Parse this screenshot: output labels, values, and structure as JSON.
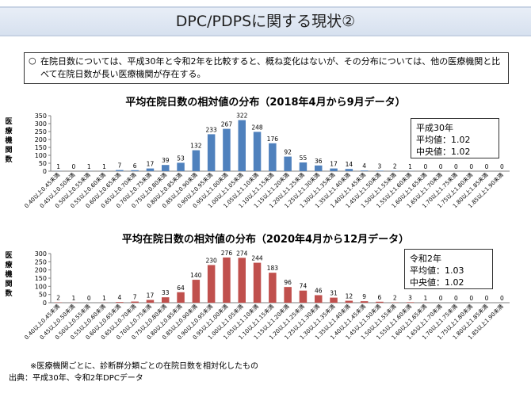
{
  "slide_title": "DPC/PDPSに関する現状②",
  "summary": {
    "bullet": "○",
    "text": "在院日数については、平成30年と令和2年を比較すると、概ね変化はないが、その分布については、他の医療機関と比べて在院日数が長い医療機関が存在する。"
  },
  "chart_data": [
    {
      "type": "bar",
      "title": "平均在院日数の相対値の分布（2018年4月から9月データ）",
      "ylabel": "医療機関数",
      "ylim": [
        0,
        350
      ],
      "yticks": [
        0,
        50,
        100,
        150,
        200,
        250,
        300,
        350
      ],
      "grid": false,
      "bar_color": "#4f81bd",
      "categories": [
        "0.40以上0.45未満",
        "0.45以上0.50未満",
        "0.50以上0.55未満",
        "0.55以上0.60未満",
        "0.60以上0.65未満",
        "0.65以上0.70未満",
        "0.70以上0.75未満",
        "0.75以上0.80未満",
        "0.80以上0.85未満",
        "0.85以上0.90未満",
        "0.90以上0.95未満",
        "0.95以上1.00未満",
        "1.00以上1.05未満",
        "1.05以上1.10未満",
        "1.10以上1.15未満",
        "1.15以上1.20未満",
        "1.20以上1.25未満",
        "1.25以上1.30未満",
        "1.30以上1.35未満",
        "1.35以上1.40未満",
        "1.40以上1.45未満",
        "1.45以上1.50未満",
        "1.50以上1.55未満",
        "1.55以上1.60未満",
        "1.60以上1.65未満",
        "1.65以上1.70未満",
        "1.70以上1.75未満",
        "1.75以上1.80未満",
        "1.80以上1.85未満",
        "1.85以上1.90未満"
      ],
      "values": [
        1,
        0,
        1,
        1,
        7,
        6,
        17,
        39,
        53,
        132,
        233,
        267,
        322,
        248,
        176,
        92,
        55,
        36,
        17,
        14,
        4,
        3,
        2,
        1,
        0,
        0,
        0,
        0,
        0,
        0
      ],
      "stats": {
        "label": "平成30年",
        "mean": "平均値：1.02",
        "median": "中央値：1.02"
      }
    },
    {
      "type": "bar",
      "title": "平均在院日数の相対値の分布（2020年4月から12月データ）",
      "ylabel": "医療機関数",
      "ylim": [
        0,
        300
      ],
      "yticks": [
        0,
        50,
        100,
        150,
        200,
        250,
        300
      ],
      "grid": false,
      "bar_color": "#c0504d",
      "categories": [
        "0.40以上0.45未満",
        "0.45以上0.50未満",
        "0.50以上0.55未満",
        "0.55以上0.60未満",
        "0.60以上0.65未満",
        "0.65以上0.70未満",
        "0.70以上0.75未満",
        "0.75以上0.80未満",
        "0.80以上0.85未満",
        "0.85以上0.90未満",
        "0.90以上0.95未満",
        "0.95以上1.00未満",
        "1.00以上1.05未満",
        "1.05以上1.10未満",
        "1.10以上1.15未満",
        "1.15以上1.20未満",
        "1.20以上1.25未満",
        "1.25以上1.30未満",
        "1.30以上1.35未満",
        "1.35以上1.40未満",
        "1.40以上1.45未満",
        "1.45以上1.50未満",
        "1.50以上1.55未満",
        "1.55以上1.60未満",
        "1.60以上1.65未満",
        "1.65以上1.70未満",
        "1.70以上1.75未満",
        "1.75以上1.80未満",
        "1.80以上1.85未満",
        "1.85以上1.90未満"
      ],
      "values": [
        2,
        1,
        0,
        1,
        4,
        7,
        17,
        33,
        64,
        140,
        230,
        276,
        274,
        244,
        183,
        96,
        74,
        46,
        31,
        12,
        9,
        6,
        2,
        3,
        1,
        0,
        0,
        0,
        0,
        0
      ],
      "stats": {
        "label": "令和2年",
        "mean": "平均値：1.03",
        "median": "中央値：1.02"
      }
    }
  ],
  "footnote": "※医療機関ごとに、診断群分類ごとの在院日数を相対化したもの",
  "source": "出典：平成30年、令和2年DPCデータ"
}
